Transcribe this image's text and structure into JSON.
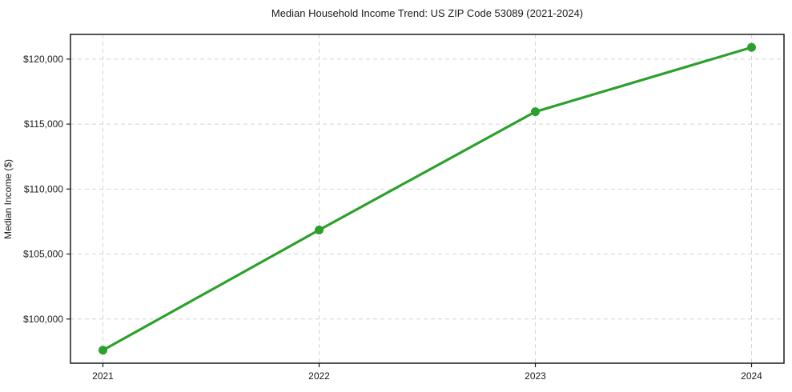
{
  "page": {
    "background": "#ffffff"
  },
  "chart_data": {
    "type": "line",
    "title": "Median Household Income Trend: US ZIP Code 53089 (2021-2024)",
    "xlabel": "",
    "ylabel": "Median Income ($)",
    "x": [
      2021,
      2022,
      2023,
      2024
    ],
    "x_tick_labels": [
      "2021",
      "2022",
      "2023",
      "2024"
    ],
    "series": [
      {
        "name": "Median Household Income",
        "values": [
          97600,
          106850,
          115950,
          120900
        ],
        "color": "#2ca02c",
        "marker": "circle"
      }
    ],
    "xlim": [
      2020.85,
      2024.15
    ],
    "ylim": [
      96600,
      121900
    ],
    "y_ticks": [
      100000,
      105000,
      110000,
      115000,
      120000
    ],
    "y_tick_labels": [
      "$100,000",
      "$105,000",
      "$110,000",
      "$115,000",
      "$120,000"
    ],
    "grid": "dashed",
    "legend": "none"
  },
  "style": {
    "grid_color": "#d4d4d4",
    "spine_color": "#1a1a1a",
    "tick_color": "#1a1a1a",
    "line_width": 3.2,
    "marker_radius": 5.5
  }
}
